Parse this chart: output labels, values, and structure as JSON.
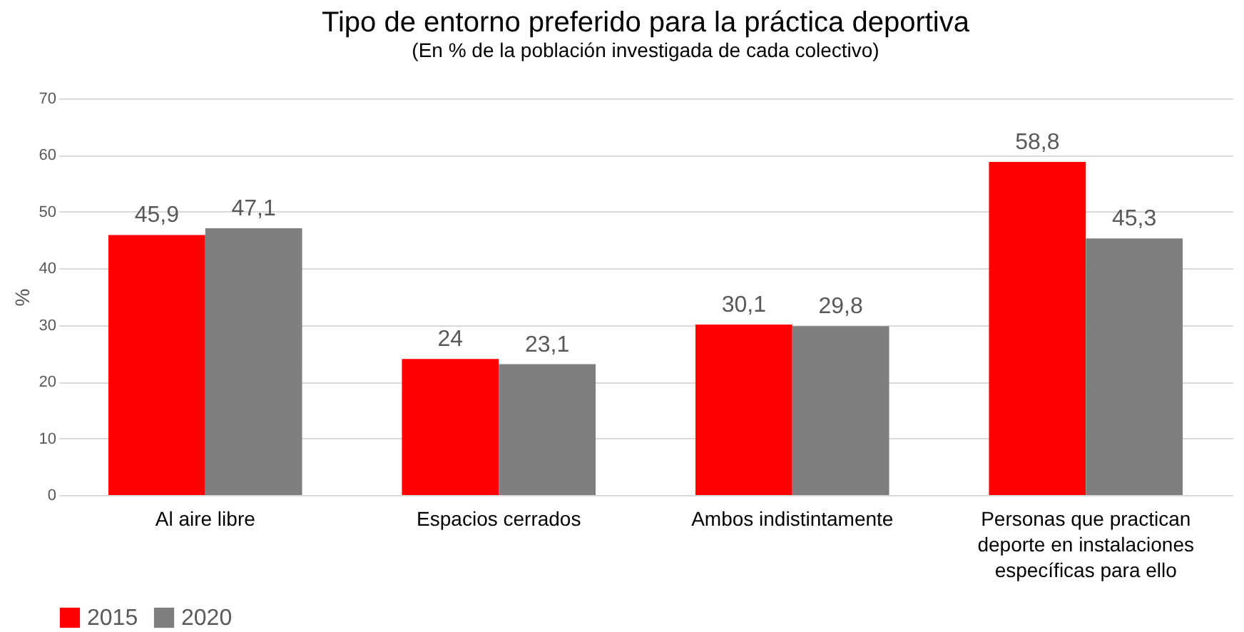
{
  "chart_data": {
    "type": "bar",
    "title": "Tipo de entorno preferido para la práctica deportiva",
    "subtitle": "(En % de la población investigada de cada colectivo)",
    "ylabel": "%",
    "categories": [
      "Al aire libre",
      "Espacios cerrados",
      "Ambos indistintamente",
      "Personas que practican deporte en instalaciones específicas para ello"
    ],
    "series": [
      {
        "name": "2015",
        "color": "#ff0000",
        "values": [
          45.9,
          24,
          30.1,
          58.8
        ],
        "value_labels": [
          "45,9",
          "24",
          "30,1",
          "58,8"
        ]
      },
      {
        "name": "2020",
        "color": "#7f7f7f",
        "values": [
          47.1,
          23.1,
          29.8,
          45.3
        ],
        "value_labels": [
          "47,1",
          "23,1",
          "29,8",
          "45,3"
        ]
      }
    ],
    "ylim": [
      0,
      70
    ],
    "yticks": [
      0,
      10,
      20,
      30,
      40,
      50,
      60,
      70
    ],
    "grid": "y",
    "legend": "bottom"
  }
}
